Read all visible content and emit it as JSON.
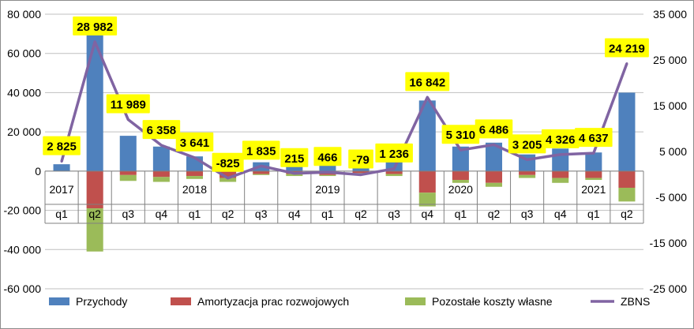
{
  "chart_data": {
    "type": "bar",
    "stacked": true,
    "quarters": [
      "q1",
      "q2",
      "q3",
      "q4",
      "q1",
      "q2",
      "q3",
      "q4",
      "q1",
      "q2",
      "q3",
      "q4",
      "q1",
      "q2",
      "q3",
      "q4",
      "q1",
      "q2"
    ],
    "years": [
      {
        "label": "2017",
        "index": 0
      },
      {
        "label": "2018",
        "index": 4
      },
      {
        "label": "2019",
        "index": 8
      },
      {
        "label": "2020",
        "index": 12
      },
      {
        "label": "2021",
        "index": 16
      }
    ],
    "y_left": {
      "min": -60000,
      "max": 80000,
      "ticks": [
        "-60 000",
        "-40 000",
        "-20 000",
        "0",
        "20 000",
        "40 000",
        "60 000",
        "80 000"
      ]
    },
    "y_right": {
      "min": -25000,
      "max": 35000,
      "ticks": [
        "-25 000",
        "-15 000",
        "-5 000",
        "5 000",
        "15 000",
        "25 000",
        "35 000"
      ]
    },
    "gridlines": true,
    "legend_position": "bottom",
    "series": [
      {
        "name": "Przychody",
        "kind": "bar",
        "axis": "left",
        "color": "#4f81bd",
        "values": [
          3500,
          70000,
          18000,
          12500,
          7500,
          2000,
          4500,
          3000,
          4000,
          2500,
          5000,
          36000,
          12500,
          14500,
          8500,
          11500,
          9500,
          40000
        ]
      },
      {
        "name": "Amortyzacja prac rozwojowych",
        "kind": "bar",
        "axis": "left",
        "color": "#c0504d",
        "values": [
          0,
          -19000,
          -2000,
          -3000,
          -2500,
          -3500,
          -1500,
          -1500,
          -2000,
          -1000,
          -1500,
          -11000,
          -4500,
          -6000,
          -2000,
          -3500,
          -3500,
          -8500
        ]
      },
      {
        "name": "Pozostałe koszty własne",
        "kind": "bar",
        "axis": "left",
        "color": "#9bbb59",
        "values": [
          0,
          -22000,
          -3000,
          -2500,
          -1500,
          -2000,
          -500,
          -1000,
          -500,
          -500,
          -1000,
          -7000,
          -1500,
          -2000,
          -1500,
          -2500,
          -1000,
          -7000
        ]
      },
      {
        "name": "ZBNS",
        "kind": "line",
        "axis": "right",
        "color": "#8064a2",
        "values": [
          2825,
          28982,
          11989,
          6358,
          3641,
          -825,
          1835,
          215,
          466,
          -79,
          1236,
          16842,
          5310,
          6486,
          3205,
          4326,
          4637,
          24219
        ],
        "labels": [
          "2 825",
          "28 982",
          "11 989",
          "6 358",
          "3 641",
          "-825",
          "1 835",
          "215",
          "466",
          "-79",
          "1 236",
          "16 842",
          "5 310",
          "6 486",
          "3 205",
          "4 326",
          "4 637",
          "24 219"
        ],
        "label_bg": "#ffff00"
      }
    ]
  }
}
